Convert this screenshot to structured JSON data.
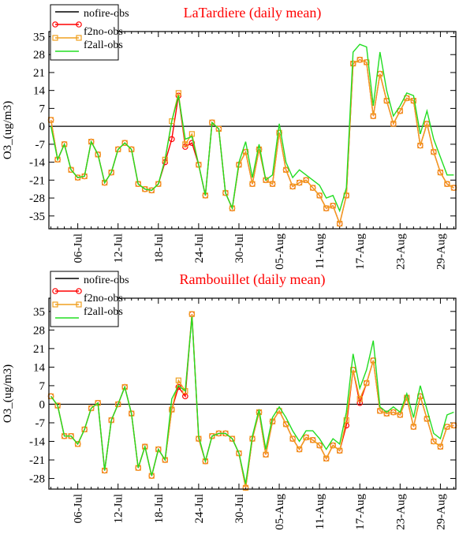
{
  "chart_data": [
    {
      "type": "line",
      "title": "LaTardiere (daily mean)",
      "ylabel": "O3_(ug/m3)",
      "legend": "upper left",
      "zero_line": true,
      "categories": [
        null,
        null,
        null,
        null,
        "06-Jul",
        null,
        null,
        null,
        null,
        null,
        "12-Jul",
        null,
        null,
        null,
        null,
        null,
        "18-Jul",
        null,
        null,
        null,
        null,
        null,
        "24-Jul",
        null,
        null,
        null,
        null,
        null,
        "30-Jul",
        null,
        null,
        null,
        null,
        null,
        "05-Aug",
        null,
        null,
        null,
        null,
        null,
        "11-Aug",
        null,
        null,
        null,
        null,
        null,
        "17-Aug",
        null,
        null,
        null,
        null,
        null,
        "23-Aug",
        null,
        null,
        null,
        null,
        null,
        "29-Aug",
        null,
        null
      ],
      "ylim": [
        -40,
        37
      ],
      "yticks": [
        -35,
        -28,
        -21,
        -14,
        -7,
        0,
        7,
        14,
        21,
        28,
        35
      ],
      "series": [
        {
          "name": "nofire-obs",
          "color": "#ff0000",
          "marker": "circle",
          "values": [
            2.5,
            -13,
            -7,
            -17,
            -20,
            -19.5,
            -6,
            -11,
            -22,
            -18,
            -9,
            -6.5,
            -9,
            -22.5,
            -24.5,
            -25,
            -22.5,
            -14,
            -5,
            12,
            -8,
            -6.5,
            -15,
            -27,
            1.5,
            -1,
            -26,
            -32,
            -15,
            -10,
            -22.5,
            -9,
            -21,
            -22.5,
            -2.5,
            -17,
            -23.5,
            -22,
            -21,
            -24,
            -27,
            -32,
            -31,
            -38,
            -27,
            24.5,
            26,
            25,
            4,
            20.5,
            10,
            1,
            6,
            11,
            10,
            -7.5,
            1,
            -10,
            -18,
            -22.5,
            -24
          ]
        },
        {
          "name": "f2no-obs",
          "color": "#f0a020",
          "marker": "square",
          "values": [
            2.5,
            -13,
            -7,
            -17,
            -20,
            -19.5,
            -6,
            -11,
            -22,
            -18,
            -9,
            -6.5,
            -9,
            -22.5,
            -24.5,
            -25,
            -22.5,
            -13,
            2,
            13,
            -7,
            -3,
            -15,
            -27,
            1.5,
            -1,
            -26,
            -32,
            -15,
            -10,
            -22.5,
            -9,
            -21,
            -22.5,
            -2.5,
            -17,
            -23.5,
            -22,
            -21,
            -24,
            -27,
            -32,
            -31,
            -38,
            -27,
            24.5,
            26,
            25,
            4,
            20.5,
            10,
            1,
            6,
            11,
            10,
            -7.5,
            1,
            -10,
            -18,
            -22.5,
            -24
          ]
        },
        {
          "name": "f2all-obs",
          "color": "#22dd22",
          "marker": "none",
          "values": [
            0,
            -13,
            -7,
            -17,
            -20,
            -19.5,
            -6,
            -11,
            -22,
            -18,
            -9,
            -6.5,
            -9,
            -22.5,
            -24.5,
            -25,
            -22.5,
            -13,
            2,
            12,
            -5,
            -4,
            -15,
            -27,
            1.5,
            -1,
            -26,
            -32,
            -14,
            -6,
            -20,
            -7,
            -21,
            -19,
            1,
            -14,
            -20,
            -17,
            -19,
            -21,
            -23,
            -28,
            -27,
            -33,
            -24,
            29,
            32,
            31,
            8,
            29,
            14,
            4,
            8,
            13,
            12,
            -3,
            6,
            -5,
            -12,
            -19,
            -19
          ]
        }
      ]
    },
    {
      "type": "line",
      "title": "Rambouillet (daily mean)",
      "ylabel": "O3_(ug/m3)",
      "legend": "upper left",
      "zero_line": true,
      "categories": [
        null,
        null,
        null,
        null,
        "06-Jul",
        null,
        null,
        null,
        null,
        null,
        "12-Jul",
        null,
        null,
        null,
        null,
        null,
        "18-Jul",
        null,
        null,
        null,
        null,
        null,
        "24-Jul",
        null,
        null,
        null,
        null,
        null,
        "30-Jul",
        null,
        null,
        null,
        null,
        null,
        "05-Aug",
        null,
        null,
        null,
        null,
        null,
        "11-Aug",
        null,
        null,
        null,
        null,
        null,
        "17-Aug",
        null,
        null,
        null,
        null,
        null,
        "23-Aug",
        null,
        null,
        null,
        null,
        null,
        "29-Aug",
        null,
        null
      ],
      "ylim": [
        -32,
        40
      ],
      "yticks": [
        -28,
        -21,
        -14,
        -7,
        0,
        7,
        14,
        21,
        28,
        35
      ],
      "series": [
        {
          "name": "nofire-obs",
          "color": "#ff0000",
          "marker": "circle",
          "values": [
            3,
            -0.5,
            -12,
            -12,
            -15,
            -9.5,
            -1.5,
            0.5,
            -25,
            -6,
            0,
            6.5,
            -3.5,
            -24,
            -16,
            -27,
            -17,
            -21,
            -2,
            6.5,
            3,
            34,
            -13,
            -21.5,
            -12,
            -11,
            -11,
            -13,
            -18.5,
            -31.5,
            -13,
            -3,
            -19,
            -6.5,
            -2.5,
            -7.5,
            -13,
            -17,
            -12.5,
            -13.5,
            -15.5,
            -20.5,
            -15.5,
            -17.5,
            -8,
            13,
            0.5,
            8,
            16.5,
            -2.5,
            -3.5,
            -3,
            -4,
            2.5,
            -8.5,
            3,
            -5.5,
            -14,
            -16,
            -8.5,
            -8
          ]
        },
        {
          "name": "f2no-obs",
          "color": "#f0a020",
          "marker": "square",
          "values": [
            3,
            -0.5,
            -12,
            -12,
            -15,
            -9.5,
            -1.5,
            0.5,
            -25,
            -6,
            0,
            6.5,
            -3.5,
            -24,
            -16,
            -27,
            -17,
            -21,
            -2,
            9,
            5,
            34,
            -13,
            -21.5,
            -12,
            -11,
            -11,
            -13,
            -18.5,
            -31.5,
            -13,
            -3,
            -19,
            -6.5,
            -2.5,
            -7.5,
            -13,
            -17,
            -12.5,
            -13.5,
            -15.5,
            -20.5,
            -15.5,
            -17.5,
            -6,
            13,
            2,
            8,
            16.5,
            -2.5,
            -3.5,
            -3,
            -4,
            2.5,
            -8.5,
            3,
            -5.5,
            -14,
            -16,
            -8.5,
            -8
          ]
        },
        {
          "name": "f2all-obs",
          "color": "#22dd22",
          "marker": "none",
          "values": [
            3,
            -0.5,
            -12,
            -12,
            -15,
            -9.5,
            -1.5,
            0.5,
            -25,
            -6,
            0,
            6.5,
            -3.5,
            -24,
            -16,
            -27,
            -17,
            -21,
            2,
            7,
            5,
            33,
            -12,
            -21.5,
            -12,
            -11,
            -11,
            -13,
            -18.5,
            -30,
            -12,
            -2,
            -17,
            -5,
            -1,
            -5,
            -10,
            -14,
            -10,
            -10,
            -13,
            -17,
            -13,
            -15,
            -3,
            19,
            6,
            13,
            24,
            -1,
            -3,
            -1,
            -3,
            4,
            -5,
            7,
            -2,
            -11,
            -13,
            -4,
            -3
          ]
        }
      ]
    }
  ]
}
